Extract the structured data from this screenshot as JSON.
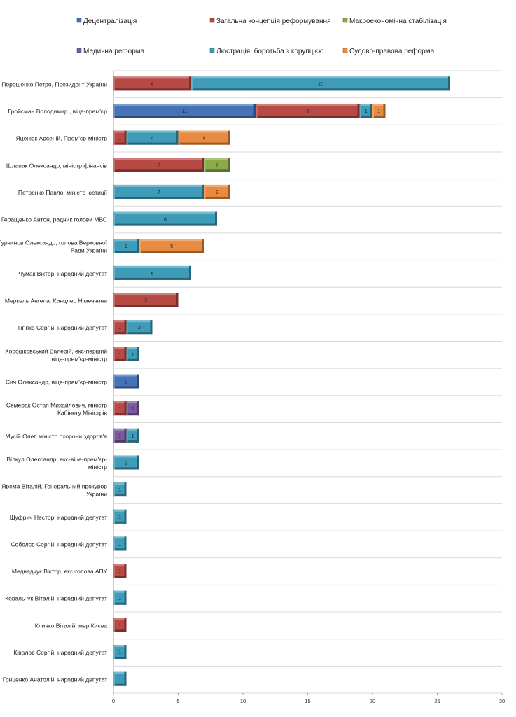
{
  "chart_data": {
    "type": "bar",
    "orientation": "horizontal",
    "stacked": true,
    "title": "",
    "xlabel": "",
    "ylabel": "",
    "xlim": [
      0,
      30
    ],
    "x_ticks": [
      "0",
      "5",
      "10",
      "15",
      "20",
      "25",
      "30"
    ],
    "grid": true,
    "legend_position": "top",
    "categories": [
      [
        "Порошенко Петро, Президент України"
      ],
      [
        "Гройсман Володимир , віце-прем'єр"
      ],
      [
        "Яценюк Арсеній,  Прем'єр-міністр"
      ],
      [
        "Шлапак Олександр, міністр фінансів"
      ],
      [
        "Петренко Павло, міністр юстиції"
      ],
      [
        "Геращенко Антон, радник голови МВС"
      ],
      [
        "Турчинов Олександр, голова Верховної",
        "Ради України"
      ],
      [
        "Чумак Віктор, народний депутат"
      ],
      [
        "Меркель Ангела. Канцлер Німеччини"
      ],
      [
        "Тігіпко Сергій,  народний депутат"
      ],
      [
        "Хорошковський Валерій, екс-перший",
        "віце-прем'єр-міністр"
      ],
      [
        "Сич Олександр, віце-прем'єр-міністр"
      ],
      [
        "Семерак Остап Михайлович, міністр",
        "Кабінету Міністрів"
      ],
      [
        "Мусій Олег, міністр охорони здоров'я"
      ],
      [
        "Вілкул Олександр, екс-віце-прем'єр-",
        "міністр"
      ],
      [
        "Ярема Віталій, Генеральний прокурор",
        "України"
      ],
      [
        "Шуфрич Нестор,  народний депутат"
      ],
      [
        "Соболєв Сергій,  народний депутат"
      ],
      [
        "Медведчук Віктор, екс-голова АПУ"
      ],
      [
        "Ковальчук Віталій,  народний депутат"
      ],
      [
        "Кличко Віталій, мер Києва"
      ],
      [
        "Ківалов Сергій,  народний  депутат"
      ],
      [
        "Гриценко Анатолій, народний депутат"
      ]
    ],
    "series": [
      {
        "name": "Децентралізація",
        "color": "#4573b5",
        "values": [
          0,
          11,
          0,
          0,
          0,
          0,
          0,
          0,
          0,
          0,
          0,
          2,
          0,
          0,
          0,
          0,
          0,
          0,
          0,
          0,
          0,
          0,
          0
        ]
      },
      {
        "name": "Загальна концепція реформування",
        "color": "#b84a46",
        "values": [
          6,
          8,
          1,
          7,
          0,
          0,
          0,
          0,
          5,
          1,
          1,
          0,
          1,
          0,
          0,
          0,
          0,
          0,
          1,
          0,
          1,
          0,
          0
        ]
      },
      {
        "name": "Макроекономічна стабілізація",
        "color": "#8bab4a",
        "values": [
          0,
          0,
          0,
          2,
          0,
          0,
          0,
          0,
          0,
          0,
          0,
          0,
          0,
          0,
          0,
          0,
          0,
          0,
          0,
          0,
          0,
          0,
          0
        ]
      },
      {
        "name": "Медична реформа",
        "color": "#7a5a9c",
        "values": [
          0,
          0,
          0,
          0,
          0,
          0,
          0,
          0,
          0,
          0,
          0,
          0,
          1,
          1,
          0,
          0,
          0,
          0,
          0,
          0,
          0,
          0,
          0
        ]
      },
      {
        "name": "Люстрація, боротьба з корупцією",
        "color": "#3e9cb8",
        "values": [
          20,
          1,
          4,
          0,
          7,
          8,
          2,
          6,
          0,
          2,
          1,
          0,
          0,
          1,
          2,
          1,
          1,
          1,
          0,
          1,
          0,
          1,
          1
        ]
      },
      {
        "name": "Судово-правова реформа",
        "color": "#e88a3f",
        "values": [
          0,
          1,
          4,
          0,
          2,
          0,
          5,
          0,
          0,
          0,
          0,
          0,
          0,
          0,
          0,
          0,
          0,
          0,
          0,
          0,
          0,
          0,
          0
        ]
      }
    ]
  }
}
